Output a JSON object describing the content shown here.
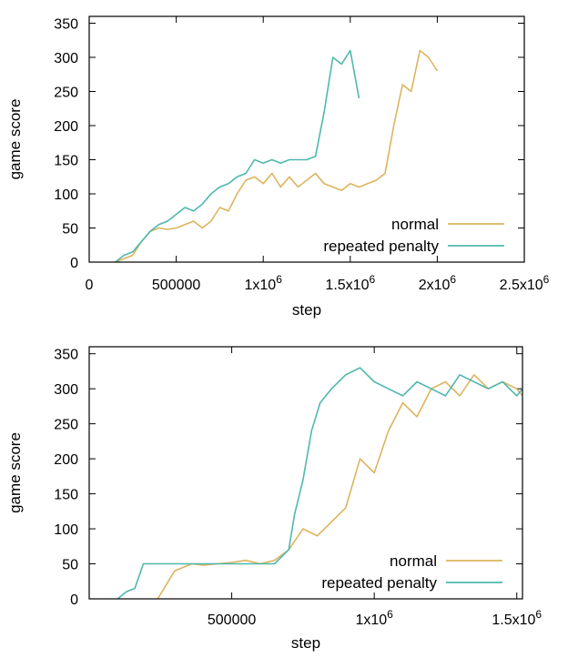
{
  "colors": {
    "normal": "#DDB45E",
    "repeated_penalty": "#4FB8AE",
    "axis": "#000000"
  },
  "chart_data": [
    {
      "type": "line",
      "xlabel": "step",
      "ylabel": "game score",
      "xlim": [
        0,
        2500000
      ],
      "ylim": [
        0,
        360
      ],
      "x_ticks": [
        0,
        500000,
        1000000,
        1500000,
        2000000,
        2500000
      ],
      "x_tick_labels": [
        {
          "base": "0",
          "exp": ""
        },
        {
          "base": "500000",
          "exp": ""
        },
        {
          "base": "1x10",
          "exp": "6"
        },
        {
          "base": "1.5x10",
          "exp": "6"
        },
        {
          "base": "2x10",
          "exp": "6"
        },
        {
          "base": "2.5x10",
          "exp": "6"
        }
      ],
      "y_ticks": [
        0,
        50,
        100,
        150,
        200,
        250,
        300,
        350
      ],
      "y_tick_labels": [
        "0",
        "50",
        "100",
        "150",
        "200",
        "250",
        "300",
        "350"
      ],
      "grid": false,
      "legend_position": "bottom-right",
      "series": [
        {
          "name": "normal",
          "color": "#DDB45E",
          "x": [
            150000,
            200000,
            250000,
            300000,
            350000,
            400000,
            450000,
            500000,
            550000,
            600000,
            650000,
            700000,
            750000,
            800000,
            850000,
            900000,
            950000,
            1000000,
            1050000,
            1100000,
            1150000,
            1200000,
            1250000,
            1300000,
            1350000,
            1400000,
            1450000,
            1500000,
            1550000,
            1600000,
            1650000,
            1700000,
            1750000,
            1800000,
            1850000,
            1900000,
            1950000,
            2000000
          ],
          "y": [
            0,
            5,
            10,
            30,
            45,
            50,
            48,
            50,
            55,
            60,
            50,
            60,
            80,
            75,
            100,
            120,
            125,
            115,
            130,
            110,
            125,
            110,
            120,
            130,
            115,
            110,
            105,
            115,
            110,
            115,
            120,
            130,
            200,
            260,
            250,
            310,
            300,
            280
          ]
        },
        {
          "name": "repeated penalty",
          "color": "#4FB8AE",
          "x": [
            150000,
            200000,
            250000,
            300000,
            350000,
            400000,
            450000,
            500000,
            550000,
            600000,
            650000,
            700000,
            750000,
            800000,
            850000,
            900000,
            950000,
            1000000,
            1050000,
            1100000,
            1150000,
            1200000,
            1250000,
            1300000,
            1350000,
            1400000,
            1450000,
            1500000,
            1550000
          ],
          "y": [
            0,
            10,
            15,
            30,
            45,
            55,
            60,
            70,
            80,
            75,
            85,
            100,
            110,
            115,
            125,
            130,
            150,
            145,
            150,
            145,
            150,
            150,
            150,
            155,
            220,
            300,
            290,
            310,
            240
          ]
        }
      ]
    },
    {
      "type": "line",
      "xlabel": "step",
      "ylabel": "game score",
      "xlim": [
        0,
        1520000
      ],
      "ylim": [
        0,
        360
      ],
      "x_ticks": [
        500000,
        1000000,
        1500000
      ],
      "x_tick_labels": [
        {
          "base": "500000",
          "exp": ""
        },
        {
          "base": "1x10",
          "exp": "6"
        },
        {
          "base": "1.5x10",
          "exp": "6"
        }
      ],
      "y_ticks": [
        0,
        50,
        100,
        150,
        200,
        250,
        300,
        350
      ],
      "y_tick_labels": [
        "0",
        "50",
        "100",
        "150",
        "200",
        "250",
        "300",
        "350"
      ],
      "grid": false,
      "legend_position": "bottom-right",
      "series": [
        {
          "name": "normal",
          "color": "#DDB45E",
          "x": [
            240000,
            270000,
            300000,
            330000,
            360000,
            400000,
            450000,
            500000,
            550000,
            600000,
            650000,
            700000,
            750000,
            800000,
            850000,
            900000,
            950000,
            1000000,
            1050000,
            1100000,
            1150000,
            1200000,
            1250000,
            1300000,
            1350000,
            1400000,
            1450000,
            1500000,
            1520000
          ],
          "y": [
            0,
            20,
            40,
            45,
            50,
            48,
            50,
            52,
            55,
            50,
            55,
            70,
            100,
            90,
            110,
            130,
            200,
            180,
            240,
            280,
            260,
            300,
            310,
            290,
            320,
            300,
            310,
            300,
            290
          ]
        },
        {
          "name": "repeated penalty",
          "color": "#4FB8AE",
          "x": [
            100000,
            130000,
            160000,
            190000,
            220000,
            300000,
            400000,
            500000,
            600000,
            650000,
            700000,
            720000,
            750000,
            780000,
            810000,
            850000,
            900000,
            950000,
            1000000,
            1050000,
            1100000,
            1150000,
            1200000,
            1250000,
            1300000,
            1350000,
            1400000,
            1450000,
            1500000,
            1520000
          ],
          "y": [
            0,
            10,
            15,
            50,
            50,
            50,
            50,
            50,
            50,
            50,
            70,
            120,
            170,
            240,
            280,
            300,
            320,
            330,
            310,
            300,
            290,
            310,
            300,
            290,
            320,
            310,
            300,
            310,
            290,
            300
          ]
        }
      ]
    }
  ]
}
